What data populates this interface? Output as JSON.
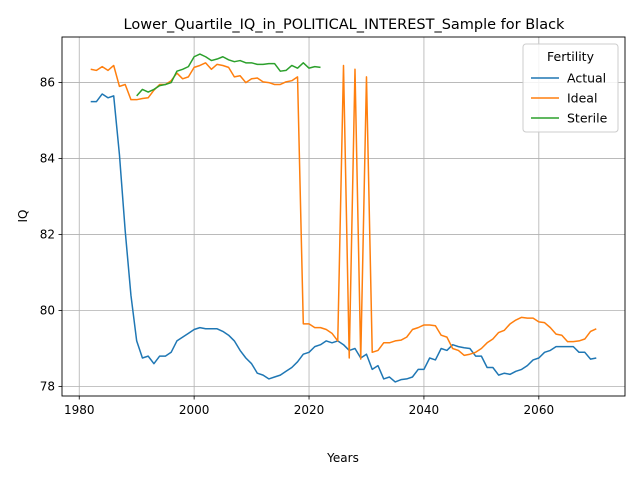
{
  "chart_data": {
    "type": "line",
    "title": "Lower_Quartile_IQ_in_POLITICAL_INTEREST_Sample for Black",
    "xlabel": "Years",
    "ylabel": "IQ",
    "xlim": [
      1977,
      2075
    ],
    "ylim": [
      77.75,
      87.2
    ],
    "x_ticks": [
      1980,
      2000,
      2020,
      2040,
      2060
    ],
    "y_ticks": [
      78,
      80,
      82,
      84,
      86
    ],
    "grid": true,
    "legend": {
      "title": "Fertility",
      "placement": "top-right"
    },
    "series": [
      {
        "name": "Actual",
        "color": "#1f77b4",
        "points": [
          [
            1982,
            85.5
          ],
          [
            1983,
            85.5
          ],
          [
            1984,
            85.7
          ],
          [
            1985,
            85.6
          ],
          [
            1986,
            85.65
          ],
          [
            1987,
            84.1
          ],
          [
            1988,
            82.1
          ],
          [
            1989,
            80.4
          ],
          [
            1990,
            79.2
          ],
          [
            1991,
            78.75
          ],
          [
            1992,
            78.8
          ],
          [
            1993,
            78.6
          ],
          [
            1994,
            78.8
          ],
          [
            1995,
            78.8
          ],
          [
            1996,
            78.9
          ],
          [
            1997,
            79.2
          ],
          [
            1998,
            79.3
          ],
          [
            1999,
            79.4
          ],
          [
            2000,
            79.5
          ],
          [
            2001,
            79.55
          ],
          [
            2002,
            79.52
          ],
          [
            2003,
            79.52
          ],
          [
            2004,
            79.52
          ],
          [
            2005,
            79.45
          ],
          [
            2006,
            79.35
          ],
          [
            2007,
            79.2
          ],
          [
            2008,
            78.95
          ],
          [
            2009,
            78.75
          ],
          [
            2010,
            78.6
          ],
          [
            2011,
            78.35
          ],
          [
            2012,
            78.3
          ],
          [
            2013,
            78.2
          ],
          [
            2014,
            78.25
          ],
          [
            2015,
            78.3
          ],
          [
            2016,
            78.4
          ],
          [
            2017,
            78.5
          ],
          [
            2018,
            78.65
          ],
          [
            2019,
            78.85
          ],
          [
            2020,
            78.9
          ],
          [
            2021,
            79.05
          ],
          [
            2022,
            79.1
          ],
          [
            2023,
            79.2
          ],
          [
            2024,
            79.15
          ],
          [
            2025,
            79.2
          ],
          [
            2026,
            79.1
          ],
          [
            2027,
            78.95
          ],
          [
            2028,
            79.0
          ],
          [
            2029,
            78.75
          ],
          [
            2030,
            78.85
          ],
          [
            2031,
            78.45
          ],
          [
            2032,
            78.55
          ],
          [
            2033,
            78.2
          ],
          [
            2034,
            78.25
          ],
          [
            2035,
            78.12
          ],
          [
            2036,
            78.18
          ],
          [
            2037,
            78.2
          ],
          [
            2038,
            78.25
          ],
          [
            2039,
            78.45
          ],
          [
            2040,
            78.45
          ],
          [
            2041,
            78.75
          ],
          [
            2042,
            78.7
          ],
          [
            2043,
            79.0
          ],
          [
            2044,
            78.95
          ],
          [
            2045,
            79.1
          ],
          [
            2046,
            79.05
          ],
          [
            2047,
            79.02
          ],
          [
            2048,
            79.0
          ],
          [
            2049,
            78.8
          ],
          [
            2050,
            78.8
          ],
          [
            2051,
            78.5
          ],
          [
            2052,
            78.5
          ],
          [
            2053,
            78.3
          ],
          [
            2054,
            78.35
          ],
          [
            2055,
            78.32
          ],
          [
            2056,
            78.4
          ],
          [
            2057,
            78.45
          ],
          [
            2058,
            78.55
          ],
          [
            2059,
            78.7
          ],
          [
            2060,
            78.75
          ],
          [
            2061,
            78.9
          ],
          [
            2062,
            78.95
          ],
          [
            2063,
            79.05
          ],
          [
            2064,
            79.05
          ],
          [
            2065,
            79.05
          ],
          [
            2066,
            79.05
          ],
          [
            2067,
            78.9
          ],
          [
            2068,
            78.9
          ],
          [
            2069,
            78.72
          ],
          [
            2070,
            78.75
          ]
        ]
      },
      {
        "name": "Ideal",
        "color": "#ff7f0e",
        "points": [
          [
            1982,
            86.35
          ],
          [
            1983,
            86.32
          ],
          [
            1984,
            86.42
          ],
          [
            1985,
            86.32
          ],
          [
            1986,
            86.45
          ],
          [
            1987,
            85.9
          ],
          [
            1988,
            85.95
          ],
          [
            1989,
            85.55
          ],
          [
            1990,
            85.55
          ],
          [
            1991,
            85.58
          ],
          [
            1992,
            85.6
          ],
          [
            1993,
            85.8
          ],
          [
            1994,
            85.95
          ],
          [
            1995,
            85.95
          ],
          [
            1996,
            86.05
          ],
          [
            1997,
            86.25
          ],
          [
            1998,
            86.1
          ],
          [
            1999,
            86.15
          ],
          [
            2000,
            86.4
          ],
          [
            2001,
            86.45
          ],
          [
            2002,
            86.52
          ],
          [
            2003,
            86.35
          ],
          [
            2004,
            86.48
          ],
          [
            2005,
            86.45
          ],
          [
            2006,
            86.4
          ],
          [
            2007,
            86.15
          ],
          [
            2008,
            86.18
          ],
          [
            2009,
            86.0
          ],
          [
            2010,
            86.1
          ],
          [
            2011,
            86.12
          ],
          [
            2012,
            86.02
          ],
          [
            2013,
            86.0
          ],
          [
            2014,
            85.95
          ],
          [
            2015,
            85.95
          ],
          [
            2016,
            86.02
          ],
          [
            2017,
            86.05
          ],
          [
            2018,
            86.15
          ],
          [
            2019,
            79.65
          ],
          [
            2020,
            79.65
          ],
          [
            2021,
            79.55
          ],
          [
            2022,
            79.55
          ],
          [
            2023,
            79.5
          ],
          [
            2024,
            79.4
          ],
          [
            2025,
            79.2
          ],
          [
            2026,
            86.45
          ],
          [
            2027,
            78.75
          ],
          [
            2028,
            86.35
          ],
          [
            2029,
            78.72
          ],
          [
            2030,
            86.15
          ],
          [
            2031,
            78.9
          ],
          [
            2032,
            78.95
          ],
          [
            2033,
            79.15
          ],
          [
            2034,
            79.15
          ],
          [
            2035,
            79.2
          ],
          [
            2036,
            79.22
          ],
          [
            2037,
            79.3
          ],
          [
            2038,
            79.5
          ],
          [
            2039,
            79.55
          ],
          [
            2040,
            79.62
          ],
          [
            2041,
            79.62
          ],
          [
            2042,
            79.6
          ],
          [
            2043,
            79.35
          ],
          [
            2044,
            79.3
          ],
          [
            2045,
            79.0
          ],
          [
            2046,
            78.95
          ],
          [
            2047,
            78.82
          ],
          [
            2048,
            78.85
          ],
          [
            2049,
            78.9
          ],
          [
            2050,
            79.0
          ],
          [
            2051,
            79.15
          ],
          [
            2052,
            79.25
          ],
          [
            2053,
            79.42
          ],
          [
            2054,
            79.48
          ],
          [
            2055,
            79.65
          ],
          [
            2056,
            79.75
          ],
          [
            2057,
            79.82
          ],
          [
            2058,
            79.8
          ],
          [
            2059,
            79.8
          ],
          [
            2060,
            79.7
          ],
          [
            2061,
            79.68
          ],
          [
            2062,
            79.55
          ],
          [
            2063,
            79.38
          ],
          [
            2064,
            79.35
          ],
          [
            2065,
            79.18
          ],
          [
            2066,
            79.18
          ],
          [
            2067,
            79.2
          ],
          [
            2068,
            79.25
          ],
          [
            2069,
            79.45
          ],
          [
            2070,
            79.52
          ]
        ]
      },
      {
        "name": "Sterile",
        "color": "#2ca02c",
        "points": [
          [
            1990,
            85.65
          ],
          [
            1991,
            85.82
          ],
          [
            1992,
            85.75
          ],
          [
            1993,
            85.82
          ],
          [
            1994,
            85.92
          ],
          [
            1995,
            85.95
          ],
          [
            1996,
            86.0
          ],
          [
            1997,
            86.3
          ],
          [
            1998,
            86.35
          ],
          [
            1999,
            86.42
          ],
          [
            2000,
            86.68
          ],
          [
            2001,
            86.75
          ],
          [
            2002,
            86.68
          ],
          [
            2003,
            86.58
          ],
          [
            2004,
            86.62
          ],
          [
            2005,
            86.68
          ],
          [
            2006,
            86.6
          ],
          [
            2007,
            86.55
          ],
          [
            2008,
            86.58
          ],
          [
            2009,
            86.52
          ],
          [
            2010,
            86.52
          ],
          [
            2011,
            86.48
          ],
          [
            2012,
            86.48
          ],
          [
            2013,
            86.5
          ],
          [
            2014,
            86.5
          ],
          [
            2015,
            86.3
          ],
          [
            2016,
            86.32
          ],
          [
            2017,
            86.45
          ],
          [
            2018,
            86.38
          ],
          [
            2019,
            86.52
          ],
          [
            2020,
            86.38
          ],
          [
            2021,
            86.42
          ],
          [
            2022,
            86.4
          ]
        ]
      }
    ]
  }
}
